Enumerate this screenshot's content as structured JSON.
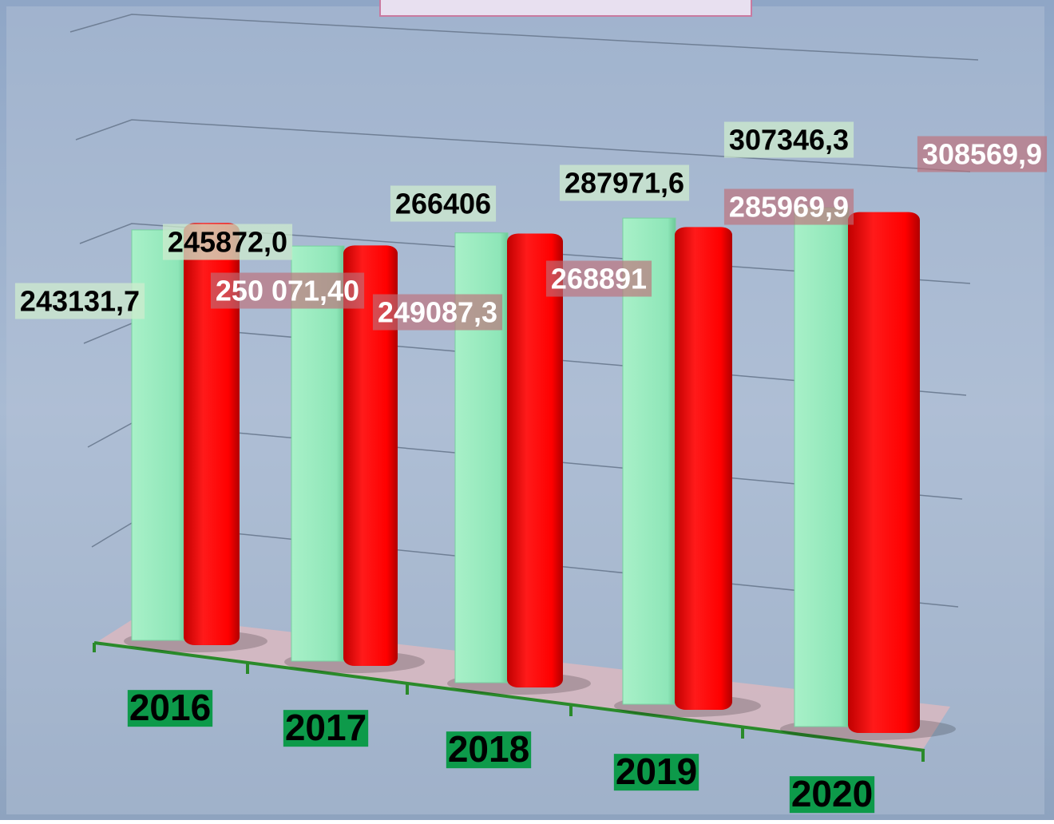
{
  "chart_data": {
    "type": "bar",
    "categories": [
      "2016",
      "2017",
      "2018",
      "2019",
      "2020"
    ],
    "series": [
      {
        "color": "#8ee6b8",
        "values": [
          243131.7,
          245872.0,
          266406,
          287971.6,
          307346.3
        ],
        "value_labels": [
          "243131,7",
          "245872,0",
          "266406",
          "287971,6",
          "307346,3"
        ]
      },
      {
        "color": "#ff0000",
        "values": [
          250071.4,
          249087.3,
          268891,
          285969.9,
          308569.9
        ],
        "value_labels": [
          "250 071,40",
          "249087,3",
          "268891",
          "285969,9",
          "308569,9"
        ]
      }
    ],
    "ylim": [
      0,
      350000
    ],
    "grid": true
  }
}
